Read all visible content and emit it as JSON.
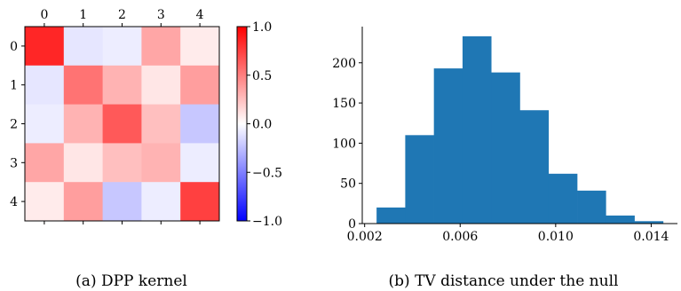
{
  "chart_data": [
    {
      "type": "heatmap",
      "title": "",
      "x_tick_labels": [
        "0",
        "1",
        "2",
        "3",
        "4"
      ],
      "y_tick_labels": [
        "0",
        "1",
        "2",
        "3",
        "4"
      ],
      "matrix": [
        [
          0.85,
          -0.1,
          -0.07,
          0.35,
          0.08
        ],
        [
          -0.1,
          0.55,
          0.3,
          0.1,
          0.38
        ],
        [
          -0.07,
          0.3,
          0.65,
          0.25,
          -0.22
        ],
        [
          0.35,
          0.1,
          0.25,
          0.3,
          -0.07
        ],
        [
          0.08,
          0.38,
          -0.22,
          -0.07,
          0.75
        ]
      ],
      "colorbar": {
        "range": [
          -1.0,
          1.0
        ],
        "ticks": [
          1.0,
          0.5,
          0.0,
          -0.5,
          -1.0
        ],
        "tick_labels": [
          "1.0",
          "0.5",
          "0.0",
          "−0.5",
          "−1.0"
        ],
        "colormap": "bwr",
        "low_color": "#0000ff",
        "mid_color": "#ffffff",
        "high_color": "#ff0000"
      },
      "caption": "(a) DPP kernel"
    },
    {
      "type": "bar",
      "subtype": "histogram",
      "title": "",
      "xlabel": "",
      "ylabel": "",
      "bin_edges": [
        0.0025,
        0.0037,
        0.0049,
        0.0061,
        0.0073,
        0.0085,
        0.0097,
        0.0109,
        0.0121,
        0.0133,
        0.0145
      ],
      "counts": [
        20,
        110,
        193,
        233,
        188,
        141,
        62,
        41,
        10,
        3
      ],
      "xlim": [
        0.0019,
        0.0151
      ],
      "ylim": [
        0,
        245
      ],
      "x_ticks": [
        0.002,
        0.006,
        0.01,
        0.014
      ],
      "x_tick_labels": [
        "0.002",
        "0.006",
        "0.010",
        "0.014"
      ],
      "y_ticks": [
        0,
        50,
        100,
        150,
        200
      ],
      "y_tick_labels": [
        "0",
        "50",
        "100",
        "150",
        "200"
      ],
      "bar_color": "#1f77b4",
      "caption": "(b) TV distance under the null"
    }
  ]
}
